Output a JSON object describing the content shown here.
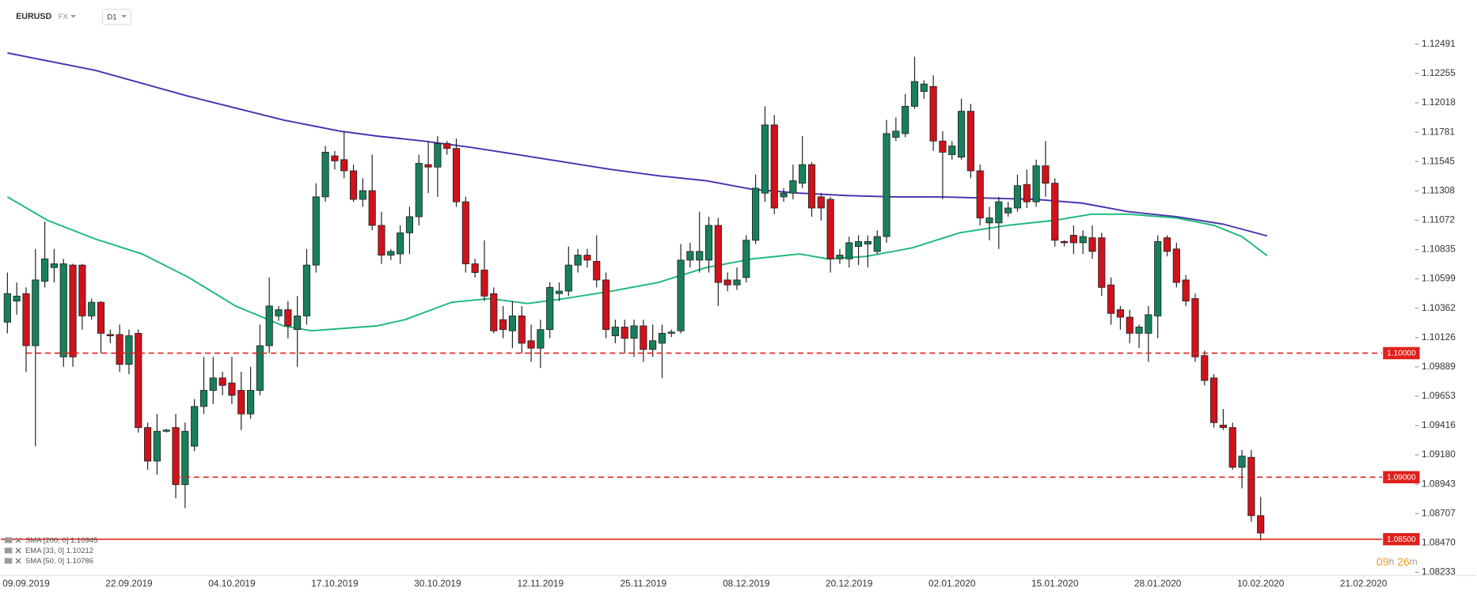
{
  "chart_data": {
    "type": "candlestick",
    "header": {
      "symbol": "EURUSD",
      "market": "FX",
      "interval": "D1"
    },
    "up_color": "#17805a",
    "down_color": "#d0121b",
    "candles": [
      {
        "open": 1.1025,
        "high": 1.1065,
        "low": 1.1016,
        "close": 1.1048
      },
      {
        "open": 1.1042,
        "high": 1.1057,
        "low": 1.1031,
        "close": 1.1046
      },
      {
        "open": 1.1048,
        "high": 1.1053,
        "low": 1.0985,
        "close": 1.1006
      },
      {
        "open": 1.1006,
        "high": 1.1084,
        "low": 1.0925,
        "close": 1.1059
      },
      {
        "open": 1.1058,
        "high": 1.1106,
        "low": 1.1053,
        "close": 1.1076
      },
      {
        "open": 1.1069,
        "high": 1.1084,
        "low": 1.1057,
        "close": 1.1072
      },
      {
        "open": 1.0997,
        "high": 1.1076,
        "low": 1.0989,
        "close": 1.1072
      },
      {
        "open": 1.1071,
        "high": 1.1072,
        "low": 1.0989,
        "close": 1.0997
      },
      {
        "open": 1.1071,
        "high": 1.1072,
        "low": 1.1019,
        "close": 1.103
      },
      {
        "open": 1.103,
        "high": 1.1044,
        "low": 1.1027,
        "close": 1.1041
      },
      {
        "open": 1.1041,
        "high": 1.1042,
        "low": 1.1,
        "close": 1.1016
      },
      {
        "open": 1.1015,
        "high": 1.1019,
        "low": 1.1008,
        "close": 1.1014
      },
      {
        "open": 1.1015,
        "high": 1.1023,
        "low": 1.0985,
        "close": 1.0991
      },
      {
        "open": 1.0991,
        "high": 1.1019,
        "low": 1.0983,
        "close": 1.1014
      },
      {
        "open": 1.1016,
        "high": 1.1019,
        "low": 1.0936,
        "close": 1.094
      },
      {
        "open": 1.094,
        "high": 1.0944,
        "low": 1.0906,
        "close": 1.0913
      },
      {
        "open": 1.0913,
        "high": 1.0951,
        "low": 1.0902,
        "close": 1.0937
      },
      {
        "open": 1.0937,
        "high": 1.0939,
        "low": 1.0936,
        "close": 1.0938
      },
      {
        "open": 1.094,
        "high": 1.0951,
        "low": 1.0883,
        "close": 1.0894
      },
      {
        "open": 1.0894,
        "high": 1.0944,
        "low": 1.0875,
        "close": 1.0937
      },
      {
        "open": 1.0925,
        "high": 1.0963,
        "low": 1.0921,
        "close": 1.0957
      },
      {
        "open": 1.0957,
        "high": 1.0997,
        "low": 1.0951,
        "close": 1.097
      },
      {
        "open": 1.097,
        "high": 1.0997,
        "low": 1.0959,
        "close": 1.098
      },
      {
        "open": 1.098,
        "high": 1.0985,
        "low": 1.0966,
        "close": 1.0974
      },
      {
        "open": 1.0976,
        "high": 1.0997,
        "low": 1.0959,
        "close": 1.0966
      },
      {
        "open": 1.097,
        "high": 1.0985,
        "low": 1.0938,
        "close": 1.0951
      },
      {
        "open": 1.0951,
        "high": 1.0989,
        "low": 1.0947,
        "close": 1.097
      },
      {
        "open": 1.097,
        "high": 1.1023,
        "low": 1.0966,
        "close": 1.1006
      },
      {
        "open": 1.1006,
        "high": 1.1061,
        "low": 1.1,
        "close": 1.1038
      },
      {
        "open": 1.103,
        "high": 1.1038,
        "low": 1.1026,
        "close": 1.1035
      },
      {
        "open": 1.1035,
        "high": 1.1042,
        "low": 1.1012,
        "close": 1.1022
      },
      {
        "open": 1.1019,
        "high": 1.1046,
        "low": 1.0989,
        "close": 1.103
      },
      {
        "open": 1.103,
        "high": 1.1084,
        "low": 1.1023,
        "close": 1.1071
      },
      {
        "open": 1.1071,
        "high": 1.1137,
        "low": 1.1065,
        "close": 1.1126
      },
      {
        "open": 1.1126,
        "high": 1.1167,
        "low": 1.1122,
        "close": 1.1162
      },
      {
        "open": 1.1159,
        "high": 1.1163,
        "low": 1.1148,
        "close": 1.1155
      },
      {
        "open": 1.1156,
        "high": 1.1179,
        "low": 1.1141,
        "close": 1.1147
      },
      {
        "open": 1.1147,
        "high": 1.1152,
        "low": 1.1122,
        "close": 1.1124
      },
      {
        "open": 1.1124,
        "high": 1.1141,
        "low": 1.1118,
        "close": 1.1131
      },
      {
        "open": 1.1131,
        "high": 1.116,
        "low": 1.1099,
        "close": 1.1103
      },
      {
        "open": 1.1103,
        "high": 1.1114,
        "low": 1.1072,
        "close": 1.1079
      },
      {
        "open": 1.1079,
        "high": 1.1084,
        "low": 1.1075,
        "close": 1.1082
      },
      {
        "open": 1.108,
        "high": 1.1103,
        "low": 1.1072,
        "close": 1.1097
      },
      {
        "open": 1.1097,
        "high": 1.1118,
        "low": 1.108,
        "close": 1.111
      },
      {
        "open": 1.111,
        "high": 1.116,
        "low": 1.1103,
        "close": 1.1153
      },
      {
        "open": 1.1152,
        "high": 1.1171,
        "low": 1.1129,
        "close": 1.115
      },
      {
        "open": 1.115,
        "high": 1.1175,
        "low": 1.1126,
        "close": 1.1169
      },
      {
        "open": 1.1169,
        "high": 1.1171,
        "low": 1.116,
        "close": 1.1165
      },
      {
        "open": 1.1165,
        "high": 1.1173,
        "low": 1.1118,
        "close": 1.1122
      },
      {
        "open": 1.1122,
        "high": 1.1126,
        "low": 1.1065,
        "close": 1.1072
      },
      {
        "open": 1.1072,
        "high": 1.1076,
        "low": 1.1061,
        "close": 1.1065
      },
      {
        "open": 1.1067,
        "high": 1.1091,
        "low": 1.1042,
        "close": 1.1046
      },
      {
        "open": 1.1048,
        "high": 1.1053,
        "low": 1.1016,
        "close": 1.1018
      },
      {
        "open": 1.1027,
        "high": 1.1038,
        "low": 1.1012,
        "close": 1.1019
      },
      {
        "open": 1.1018,
        "high": 1.1042,
        "low": 1.1004,
        "close": 1.103
      },
      {
        "open": 1.103,
        "high": 1.1038,
        "low": 1.1,
        "close": 1.1008
      },
      {
        "open": 1.101,
        "high": 1.1023,
        "low": 1.0993,
        "close": 1.1004
      },
      {
        "open": 1.1004,
        "high": 1.1027,
        "low": 1.0988,
        "close": 1.1019
      },
      {
        "open": 1.1019,
        "high": 1.1057,
        "low": 1.1012,
        "close": 1.1053
      },
      {
        "open": 1.1048,
        "high": 1.1057,
        "low": 1.1042,
        "close": 1.105
      },
      {
        "open": 1.105,
        "high": 1.1086,
        "low": 1.1046,
        "close": 1.1071
      },
      {
        "open": 1.1071,
        "high": 1.1084,
        "low": 1.1065,
        "close": 1.1079
      },
      {
        "open": 1.1079,
        "high": 1.1084,
        "low": 1.1069,
        "close": 1.1075
      },
      {
        "open": 1.1074,
        "high": 1.1095,
        "low": 1.1053,
        "close": 1.1059
      },
      {
        "open": 1.1059,
        "high": 1.1065,
        "low": 1.1012,
        "close": 1.1019
      },
      {
        "open": 1.1014,
        "high": 1.1027,
        "low": 1.1008,
        "close": 1.1021
      },
      {
        "open": 1.1021,
        "high": 1.1027,
        "low": 1.1,
        "close": 1.1012
      },
      {
        "open": 1.1012,
        "high": 1.1027,
        "low": 1.0997,
        "close": 1.1022
      },
      {
        "open": 1.1022,
        "high": 1.1027,
        "low": 1.0993,
        "close": 1.1003
      },
      {
        "open": 1.1003,
        "high": 1.1023,
        "low": 1.0997,
        "close": 1.101
      },
      {
        "open": 1.1008,
        "high": 1.1023,
        "low": 1.098,
        "close": 1.1016
      },
      {
        "open": 1.1016,
        "high": 1.1019,
        "low": 1.1013,
        "close": 1.1017
      },
      {
        "open": 1.1018,
        "high": 1.1088,
        "low": 1.1016,
        "close": 1.1075
      },
      {
        "open": 1.1075,
        "high": 1.1089,
        "low": 1.1069,
        "close": 1.1082
      },
      {
        "open": 1.1075,
        "high": 1.1114,
        "low": 1.1065,
        "close": 1.1082
      },
      {
        "open": 1.1075,
        "high": 1.111,
        "low": 1.1065,
        "close": 1.1103
      },
      {
        "open": 1.1103,
        "high": 1.1109,
        "low": 1.1038,
        "close": 1.1057
      },
      {
        "open": 1.1059,
        "high": 1.1065,
        "low": 1.105,
        "close": 1.1055
      },
      {
        "open": 1.1055,
        "high": 1.1069,
        "low": 1.1051,
        "close": 1.1059
      },
      {
        "open": 1.1061,
        "high": 1.1095,
        "low": 1.1057,
        "close": 1.1091
      },
      {
        "open": 1.1091,
        "high": 1.1144,
        "low": 1.1088,
        "close": 1.1133
      },
      {
        "open": 1.1129,
        "high": 1.1199,
        "low": 1.1122,
        "close": 1.1184
      },
      {
        "open": 1.1184,
        "high": 1.1192,
        "low": 1.1112,
        "close": 1.1117
      },
      {
        "open": 1.1126,
        "high": 1.1133,
        "low": 1.1122,
        "close": 1.1129
      },
      {
        "open": 1.1129,
        "high": 1.1152,
        "low": 1.1124,
        "close": 1.1139
      },
      {
        "open": 1.1137,
        "high": 1.1175,
        "low": 1.1133,
        "close": 1.1152
      },
      {
        "open": 1.1152,
        "high": 1.1154,
        "low": 1.111,
        "close": 1.1117
      },
      {
        "open": 1.1126,
        "high": 1.1129,
        "low": 1.1107,
        "close": 1.1117
      },
      {
        "open": 1.1124,
        "high": 1.1126,
        "low": 1.1065,
        "close": 1.1076
      },
      {
        "open": 1.1076,
        "high": 1.1084,
        "low": 1.1072,
        "close": 1.1079
      },
      {
        "open": 1.1076,
        "high": 1.1094,
        "low": 1.1069,
        "close": 1.1089
      },
      {
        "open": 1.1086,
        "high": 1.1095,
        "low": 1.1071,
        "close": 1.109
      },
      {
        "open": 1.1088,
        "high": 1.1095,
        "low": 1.1069,
        "close": 1.109
      },
      {
        "open": 1.1082,
        "high": 1.1099,
        "low": 1.108,
        "close": 1.1094
      },
      {
        "open": 1.1094,
        "high": 1.1188,
        "low": 1.1089,
        "close": 1.1177
      },
      {
        "open": 1.1174,
        "high": 1.119,
        "low": 1.1171,
        "close": 1.1179
      },
      {
        "open": 1.1177,
        "high": 1.1209,
        "low": 1.1174,
        "close": 1.1199
      },
      {
        "open": 1.1199,
        "high": 1.1239,
        "low": 1.1197,
        "close": 1.1219
      },
      {
        "open": 1.1211,
        "high": 1.122,
        "low": 1.1205,
        "close": 1.1217
      },
      {
        "open": 1.1215,
        "high": 1.1224,
        "low": 1.1163,
        "close": 1.1171
      },
      {
        "open": 1.1171,
        "high": 1.1179,
        "low": 1.1124,
        "close": 1.1162
      },
      {
        "open": 1.116,
        "high": 1.1171,
        "low": 1.1156,
        "close": 1.1167
      },
      {
        "open": 1.1158,
        "high": 1.1205,
        "low": 1.1156,
        "close": 1.1195
      },
      {
        "open": 1.1195,
        "high": 1.1201,
        "low": 1.1141,
        "close": 1.1147
      },
      {
        "open": 1.1147,
        "high": 1.1152,
        "low": 1.1103,
        "close": 1.1109
      },
      {
        "open": 1.1105,
        "high": 1.1118,
        "low": 1.1091,
        "close": 1.1109
      },
      {
        "open": 1.1105,
        "high": 1.1126,
        "low": 1.1084,
        "close": 1.1122
      },
      {
        "open": 1.1113,
        "high": 1.1122,
        "low": 1.111,
        "close": 1.1117
      },
      {
        "open": 1.1117,
        "high": 1.1144,
        "low": 1.1114,
        "close": 1.1135
      },
      {
        "open": 1.1136,
        "high": 1.1148,
        "low": 1.1117,
        "close": 1.1122
      },
      {
        "open": 1.1122,
        "high": 1.1156,
        "low": 1.1118,
        "close": 1.1151
      },
      {
        "open": 1.1151,
        "high": 1.1171,
        "low": 1.1126,
        "close": 1.1137
      },
      {
        "open": 1.1137,
        "high": 1.1141,
        "low": 1.1086,
        "close": 1.1091
      },
      {
        "open": 1.109,
        "high": 1.1091,
        "low": 1.1086,
        "close": 1.1089
      },
      {
        "open": 1.1095,
        "high": 1.1103,
        "low": 1.108,
        "close": 1.1089
      },
      {
        "open": 1.1089,
        "high": 1.1099,
        "low": 1.108,
        "close": 1.1094
      },
      {
        "open": 1.1093,
        "high": 1.1103,
        "low": 1.1076,
        "close": 1.1082
      },
      {
        "open": 1.1093,
        "high": 1.1097,
        "low": 1.1046,
        "close": 1.1053
      },
      {
        "open": 1.1055,
        "high": 1.1061,
        "low": 1.1023,
        "close": 1.1032
      },
      {
        "open": 1.1035,
        "high": 1.1038,
        "low": 1.1019,
        "close": 1.1029
      },
      {
        "open": 1.1029,
        "high": 1.1035,
        "low": 1.1008,
        "close": 1.1016
      },
      {
        "open": 1.1016,
        "high": 1.1023,
        "low": 1.1004,
        "close": 1.1021
      },
      {
        "open": 1.1016,
        "high": 1.1038,
        "low": 1.0993,
        "close": 1.1031
      },
      {
        "open": 1.103,
        "high": 1.1095,
        "low": 1.1012,
        "close": 1.109
      },
      {
        "open": 1.1093,
        "high": 1.1095,
        "low": 1.1078,
        "close": 1.1082
      },
      {
        "open": 1.1084,
        "high": 1.1089,
        "low": 1.1053,
        "close": 1.1057
      },
      {
        "open": 1.1059,
        "high": 1.1063,
        "low": 1.1038,
        "close": 1.1042
      },
      {
        "open": 1.1044,
        "high": 1.1048,
        "low": 1.0993,
        "close": 1.0997
      },
      {
        "open": 1.0998,
        "high": 1.1002,
        "low": 1.0974,
        "close": 1.0978
      },
      {
        "open": 1.098,
        "high": 1.0983,
        "low": 1.094,
        "close": 1.0944
      },
      {
        "open": 1.0942,
        "high": 1.0955,
        "low": 1.0938,
        "close": 1.094
      },
      {
        "open": 1.094,
        "high": 1.0944,
        "low": 1.0906,
        "close": 1.0908
      },
      {
        "open": 1.0908,
        "high": 1.0922,
        "low": 1.0891,
        "close": 1.0917
      },
      {
        "open": 1.0916,
        "high": 1.0922,
        "low": 1.0864,
        "close": 1.0869
      },
      {
        "open": 1.0869,
        "high": 1.0884,
        "low": 1.0849,
        "close": 1.0855
      }
    ],
    "series": [
      {
        "name": "SMA [200, 0] 1.10945",
        "color": "#4b2fb0",
        "x": [
          0,
          9.4,
          19.4,
          29.5,
          35.5,
          39.5,
          44.5,
          49.5,
          54.6,
          59.6,
          64.6,
          69.6,
          74.7,
          79.7,
          84.7,
          89.8,
          94.8,
          99.8,
          104.8,
          109.9,
          114.9,
          119.9,
          125,
          130,
          134.7
        ],
        "values": [
          1.1242,
          1.1228,
          1.1207,
          1.1188,
          1.1179,
          1.1175,
          1.1171,
          1.1166,
          1.116,
          1.1154,
          1.1148,
          1.1143,
          1.1139,
          1.1132,
          1.1129,
          1.1127,
          1.1126,
          1.1126,
          1.1125,
          1.1124,
          1.1121,
          1.1114,
          1.111,
          1.1104,
          1.10945
        ]
      },
      {
        "name": "EMA [33, 0] 1.10212",
        "color": null,
        "x": [],
        "values": []
      },
      {
        "name": "SMA [50, 0] 1.10786",
        "color": "#19b87a",
        "x": [
          0,
          4.3,
          9.4,
          14.4,
          19.4,
          24.4,
          29.5,
          32.5,
          39.5,
          42.5,
          47.5,
          51.6,
          55.6,
          59.6,
          64.6,
          69.6,
          74.7,
          79.7,
          84.7,
          87.7,
          91.8,
          96.8,
          101.8,
          106.9,
          111.9,
          115.9,
          119.9,
          125,
          129,
          132,
          134.7
        ],
        "values": [
          1.1126,
          1.1107,
          1.1092,
          1.108,
          1.1061,
          1.1038,
          1.1022,
          1.1018,
          1.1022,
          1.1027,
          1.1041,
          1.1044,
          1.104,
          1.1044,
          1.105,
          1.1057,
          1.1069,
          1.1076,
          1.108,
          1.1076,
          1.1078,
          1.1085,
          1.1097,
          1.1103,
          1.1107,
          1.1112,
          1.1112,
          1.1109,
          1.1103,
          1.1094,
          1.10786
        ]
      }
    ],
    "levels": [
      {
        "value": 1.1,
        "label": "1.10000",
        "style": "dashed"
      },
      {
        "value": 1.09,
        "label": "1.09000",
        "style": "dashed"
      },
      {
        "value": 1.085,
        "label": "1.08500",
        "style": "solid"
      }
    ],
    "level_color": "#e0201b",
    "xlim": [
      -0.7,
      150.2
    ],
    "xticks": [
      {
        "value": 2,
        "label": "09.09.2019"
      },
      {
        "value": 13,
        "label": "22.09.2019"
      },
      {
        "value": 24,
        "label": "04.10.2019"
      },
      {
        "value": 35,
        "label": "17.10.2019"
      },
      {
        "value": 46,
        "label": "30.10.2019"
      },
      {
        "value": 57,
        "label": "12.11.2019"
      },
      {
        "value": 68,
        "label": "25.11.2019"
      },
      {
        "value": 79,
        "label": "08.12.2019"
      },
      {
        "value": 90,
        "label": "20.12.2019"
      },
      {
        "value": 101,
        "label": "02.01.2020"
      },
      {
        "value": 112,
        "label": "15.01.2020"
      },
      {
        "value": 123,
        "label": "28.01.2020"
      },
      {
        "value": 134,
        "label": "10.02.2020"
      },
      {
        "value": 145,
        "label": "21.02.2020"
      }
    ],
    "ylim": [
      1.08208,
      1.12847
    ],
    "yticks": [
      1.12491,
      1.12255,
      1.12018,
      1.11781,
      1.11545,
      1.11308,
      1.11072,
      1.10835,
      1.10599,
      1.10362,
      1.10126,
      1.09889,
      1.09653,
      1.09416,
      {
        "value": 1.0918,
        "label": "1.09180"
      },
      1.08943,
      1.08707,
      {
        "value": 1.0847,
        "label": "1.08470"
      },
      1.08233
    ],
    "countdown": [
      "09",
      "h",
      "26",
      "m"
    ]
  }
}
